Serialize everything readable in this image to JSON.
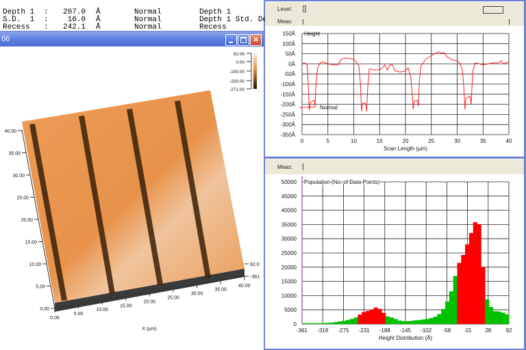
{
  "results_table": {
    "rows": [
      {
        "name": "Depth 1",
        "sep": ":",
        "value": "207.0",
        "unit": "Å",
        "mode": "Normal",
        "desc": "Depth 1"
      },
      {
        "name": "S.D.  1",
        "sep": ":",
        "value": " 16.0",
        "unit": "Å",
        "mode": "Normal",
        "desc": "Depth 1 Std. De"
      },
      {
        "name": "Recess",
        "sep": ":",
        "value": "242.1",
        "unit": "Å",
        "mode": "Normal",
        "desc": "Recess"
      }
    ]
  },
  "image_window": {
    "title": "б6",
    "buttons": {
      "minimize": "minimize-icon",
      "maximize": "maximize-icon",
      "close": "close-icon"
    },
    "colorbar_labels": [
      "92.06",
      "0.00",
      "-100.00",
      "-200.00",
      "-271.00"
    ],
    "y_ticks": [
      "0.00",
      "5.00",
      "10.00",
      "15.00",
      "20.00",
      "25.00",
      "30.00",
      "35.00",
      "40.00"
    ],
    "x_ticks": [
      "0.00",
      "5.00",
      "10.00",
      "15.00",
      "20.00",
      "25.00",
      "30.00",
      "35.00",
      "40.00"
    ],
    "z_ticks": [
      "92.0",
      "-361"
    ],
    "x_label": "X (µm)",
    "colors": {
      "surface": "#e8924a",
      "groove": "#3a2008",
      "base": "#3a3a3a"
    }
  },
  "profile_panel": {
    "level_label": "Level:",
    "meas_label": "Meas:",
    "series_label": "Height",
    "legend": "Normal",
    "xlabel": "Scan Length (µm)",
    "y_tick_labels": [
      "150Å",
      "100Å",
      "50Å",
      "0Å",
      "-50Å",
      "-100Å",
      "-150Å",
      "-200Å",
      "-250Å",
      "-300Å",
      "-350Å"
    ],
    "x_tick_labels": [
      "0",
      "5",
      "10",
      "15",
      "20",
      "25",
      "30",
      "35",
      "40"
    ]
  },
  "histogram_panel": {
    "meas_label": "Meas:",
    "ylabel": "Population (No. of Data Points)",
    "xlabel": "Height Distribution (Å)",
    "y_tick_labels": [
      "50000",
      "45000",
      "40000",
      "35000",
      "30000",
      "25000",
      "20000",
      "15000",
      "10000",
      "5000",
      "0"
    ],
    "x_tick_labels": [
      "-361",
      "-318",
      "-275",
      "-231",
      "-188",
      "-145",
      "-102",
      "-58",
      "-15",
      "28",
      "92"
    ]
  },
  "chart_data": [
    {
      "type": "line",
      "xlabel": "Scan Length (µm)",
      "ylabel": "Height",
      "xlim": [
        0,
        40
      ],
      "ylim": [
        -350,
        150
      ],
      "grid": true,
      "series": [
        {
          "name": "Normal",
          "color": "#ff2020",
          "x": [
            0,
            0.5,
            1,
            1.2,
            1.4,
            1.6,
            2,
            2.4,
            2.5,
            2.7,
            3,
            3.5,
            4,
            5,
            6,
            7,
            7.5,
            8,
            9,
            10,
            10.5,
            11,
            11.3,
            11.5,
            11.7,
            12.3,
            12.5,
            12.7,
            13,
            14,
            15,
            15.5,
            16,
            16.5,
            17,
            17.5,
            18,
            19,
            20,
            20.5,
            21,
            21.3,
            21.5,
            21.7,
            22.3,
            22.5,
            22.7,
            23,
            24,
            25,
            26,
            26.5,
            27,
            27.5,
            28,
            29,
            30,
            30.5,
            31,
            31.3,
            31.5,
            31.7,
            32.5,
            32.7,
            33,
            33.5,
            35,
            36,
            37,
            38,
            38.5,
            39,
            40
          ],
          "y": [
            0,
            5,
            -5,
            -100,
            -230,
            -190,
            -185,
            -180,
            -215,
            -100,
            -20,
            5,
            10,
            0,
            -5,
            -5,
            20,
            28,
            28,
            22,
            10,
            -10,
            -100,
            -235,
            -195,
            -195,
            -235,
            -120,
            -25,
            -30,
            -30,
            -20,
            -5,
            -30,
            -5,
            -5,
            -35,
            -40,
            -35,
            -20,
            -60,
            -150,
            -225,
            -185,
            -180,
            -210,
            -80,
            -10,
            25,
            40,
            55,
            60,
            52,
            55,
            35,
            20,
            15,
            5,
            -30,
            -120,
            -225,
            -170,
            -160,
            -200,
            -40,
            5,
            -5,
            0,
            5,
            5,
            15,
            0,
            10
          ]
        }
      ]
    },
    {
      "type": "bar",
      "xlabel": "Height Distribution (Å)",
      "ylabel": "Population (No. of Data Points)",
      "ylim": [
        0,
        50000
      ],
      "x_ticks": [
        -361,
        -318,
        -275,
        -231,
        -188,
        -145,
        -102,
        -58,
        -15,
        28,
        92
      ],
      "grid": true,
      "colors": {
        "selected": "#ff0000",
        "unselected": "#00c000"
      },
      "values": [
        300,
        300,
        300,
        300,
        300,
        350,
        400,
        500,
        700,
        900,
        1100,
        1400,
        1800,
        2300,
        3300,
        4200,
        4600,
        5000,
        5800,
        5300,
        3900,
        2700,
        2300,
        1800,
        1200,
        1000,
        1000,
        1100,
        1300,
        1400,
        1600,
        1800,
        2100,
        2600,
        3500,
        5300,
        7900,
        11500,
        16900,
        21500,
        24300,
        28000,
        32000,
        35800,
        35000,
        20000,
        8700,
        6000,
        4500,
        4400,
        4000,
        3400
      ],
      "selected": [
        0,
        0,
        0,
        0,
        0,
        0,
        0,
        0,
        0,
        0,
        0,
        0,
        0,
        0,
        1,
        1,
        1,
        1,
        1,
        1,
        1,
        0,
        0,
        0,
        0,
        0,
        0,
        0,
        0,
        0,
        0,
        0,
        0,
        0,
        0,
        0,
        0,
        0,
        0,
        1,
        1,
        1,
        1,
        1,
        1,
        1,
        0,
        0,
        0,
        0,
        0,
        0
      ]
    }
  ]
}
